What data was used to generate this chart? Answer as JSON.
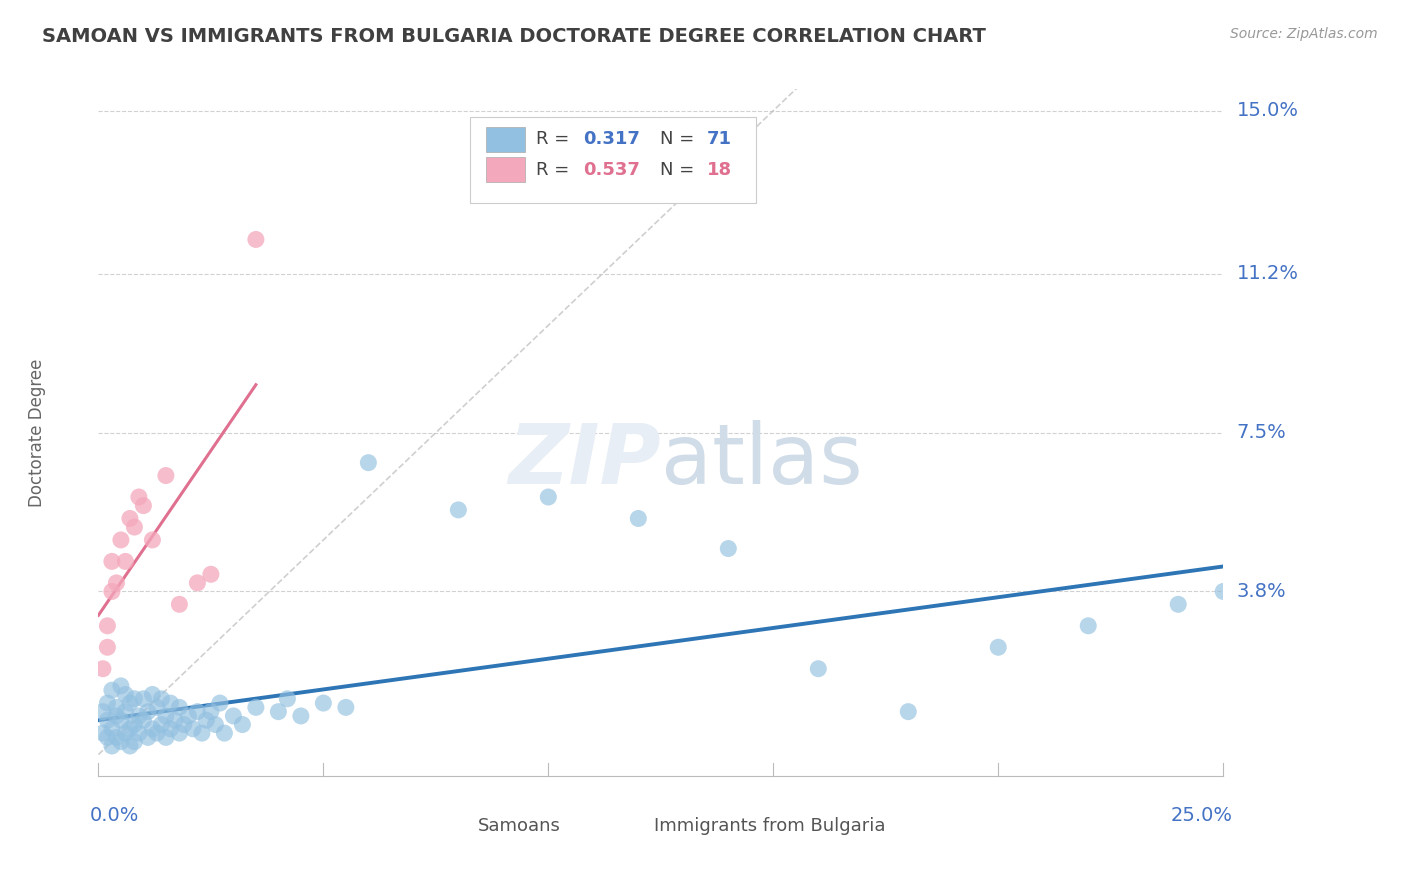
{
  "title": "SAMOAN VS IMMIGRANTS FROM BULGARIA DOCTORATE DEGREE CORRELATION CHART",
  "source_text": "Source: ZipAtlas.com",
  "ylabel": "Doctorate Degree",
  "xlim": [
    0.0,
    0.25
  ],
  "ylim": [
    -0.005,
    0.155
  ],
  "yticks": [
    0.038,
    0.075,
    0.112,
    0.15
  ],
  "ytick_labels": [
    "3.8%",
    "7.5%",
    "11.2%",
    "15.0%"
  ],
  "blue_color": "#92C0E0",
  "pink_color": "#F4A8BB",
  "blue_line_color": "#2E75B6",
  "pink_line_color": "#E07090",
  "ref_line_color": "#BBBBBB",
  "background_color": "#FFFFFF",
  "grid_color": "#CCCCCC",
  "label_color": "#4472C4",
  "pink_label_color": "#E07090",
  "title_color": "#404040",
  "samoans_x": [
    0.001,
    0.001,
    0.002,
    0.002,
    0.002,
    0.003,
    0.003,
    0.003,
    0.004,
    0.004,
    0.004,
    0.005,
    0.005,
    0.005,
    0.006,
    0.006,
    0.006,
    0.007,
    0.007,
    0.007,
    0.008,
    0.008,
    0.008,
    0.009,
    0.009,
    0.01,
    0.01,
    0.011,
    0.011,
    0.012,
    0.012,
    0.013,
    0.013,
    0.014,
    0.014,
    0.015,
    0.015,
    0.016,
    0.016,
    0.017,
    0.018,
    0.018,
    0.019,
    0.02,
    0.021,
    0.022,
    0.023,
    0.024,
    0.025,
    0.026,
    0.027,
    0.028,
    0.03,
    0.032,
    0.035,
    0.04,
    0.042,
    0.045,
    0.05,
    0.055,
    0.06,
    0.08,
    0.1,
    0.12,
    0.14,
    0.16,
    0.18,
    0.2,
    0.22,
    0.24,
    0.25
  ],
  "samoans_y": [
    0.01,
    0.005,
    0.012,
    0.004,
    0.008,
    0.015,
    0.006,
    0.002,
    0.011,
    0.004,
    0.009,
    0.016,
    0.003,
    0.008,
    0.01,
    0.005,
    0.014,
    0.006,
    0.012,
    0.002,
    0.007,
    0.013,
    0.003,
    0.009,
    0.005,
    0.008,
    0.013,
    0.004,
    0.01,
    0.006,
    0.014,
    0.005,
    0.011,
    0.007,
    0.013,
    0.004,
    0.009,
    0.006,
    0.012,
    0.008,
    0.005,
    0.011,
    0.007,
    0.009,
    0.006,
    0.01,
    0.005,
    0.008,
    0.01,
    0.007,
    0.012,
    0.005,
    0.009,
    0.007,
    0.011,
    0.01,
    0.013,
    0.009,
    0.012,
    0.011,
    0.068,
    0.057,
    0.06,
    0.055,
    0.048,
    0.02,
    0.01,
    0.025,
    0.03,
    0.035,
    0.038
  ],
  "bulgaria_x": [
    0.001,
    0.002,
    0.002,
    0.003,
    0.003,
    0.004,
    0.005,
    0.006,
    0.007,
    0.008,
    0.009,
    0.01,
    0.012,
    0.015,
    0.018,
    0.022,
    0.025,
    0.035
  ],
  "bulgaria_y": [
    0.02,
    0.025,
    0.03,
    0.038,
    0.045,
    0.04,
    0.05,
    0.045,
    0.055,
    0.053,
    0.06,
    0.058,
    0.05,
    0.065,
    0.035,
    0.04,
    0.042,
    0.12
  ]
}
